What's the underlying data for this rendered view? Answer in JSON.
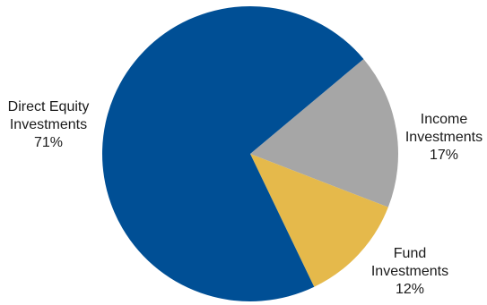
{
  "chart_data": {
    "type": "pie",
    "title": "",
    "slices": [
      {
        "label_lines": [
          "Direct Equity",
          "Investments"
        ],
        "value": 71,
        "value_label": "71%",
        "color": "#004f95"
      },
      {
        "label_lines": [
          "Income",
          "Investments"
        ],
        "value": 17,
        "value_label": "17%",
        "color": "#a6a6a6"
      },
      {
        "label_lines": [
          "Fund",
          "Investments"
        ],
        "value": 12,
        "value_label": "12%",
        "color": "#e5b94b"
      }
    ],
    "legend": "none",
    "start_angle_deg": 40
  }
}
